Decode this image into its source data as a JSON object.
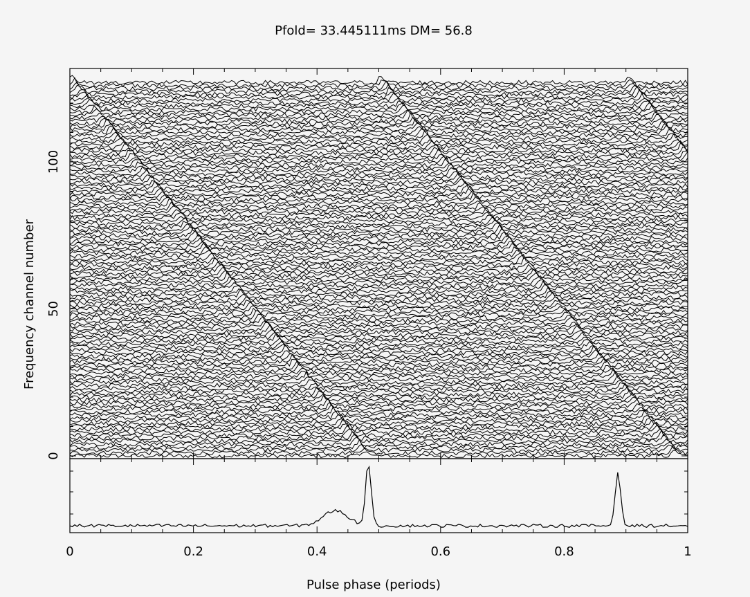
{
  "chart_data": [
    {
      "type": "line",
      "panel": "frequency-vs-phase",
      "title": "Pfold=   33.445111ms   DM=   56.8",
      "xlabel": "",
      "ylabel": "Frequency channel number",
      "xlim": [
        0,
        1
      ],
      "ylim": [
        0,
        128
      ],
      "y_ticks": [
        "0",
        "50",
        "100"
      ],
      "y_tick_values": [
        0,
        50,
        100
      ],
      "n_channels": 128,
      "n_phase_bins": 256,
      "dispersed_pulse_tracks": [
        {
          "name": "",
          "channels": [
            0,
            128
          ],
          "phase_at_channel": [
            0.48,
            0.0
          ]
        },
        {
          "name": "",
          "channels": [
            0,
            128
          ],
          "phase_at_channel": [
            0.98,
            0.5
          ]
        },
        {
          "name": "",
          "channels": [
            0,
            128
          ],
          "phase_at_channel": [
            1.38,
            0.9
          ]
        }
      ],
      "grid": false
    },
    {
      "type": "line",
      "panel": "integrated-profile",
      "xlabel": "Pulse phase (periods)",
      "ylabel": "",
      "xlim": [
        0,
        1
      ],
      "x_ticks": [
        "0",
        "0.2",
        "0.4",
        "0.6",
        "0.8",
        "1"
      ],
      "x_tick_values": [
        0,
        0.2,
        0.4,
        0.6,
        0.8,
        1
      ],
      "peaks": [
        {
          "phase": 0.483,
          "relative_height": 1.0
        },
        {
          "phase": 0.887,
          "relative_height": 0.85
        }
      ],
      "bump": {
        "phase": 0.43,
        "relative_height": 0.24
      },
      "grid": false
    }
  ]
}
